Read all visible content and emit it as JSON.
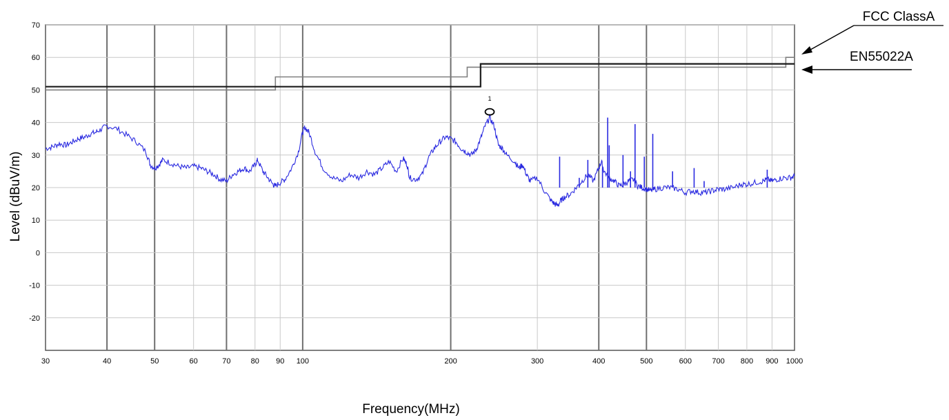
{
  "chart_data": {
    "type": "line",
    "xlabel": "Frequency(MHz)",
    "ylabel": "Level (dBuV/m)",
    "x_scale": "log",
    "xlim": [
      30,
      1000
    ],
    "ylim": [
      -30,
      70
    ],
    "x_ticks": [
      30,
      40,
      50,
      60,
      70,
      80,
      90,
      100,
      200,
      300,
      400,
      500,
      600,
      700,
      800,
      900,
      1000
    ],
    "x_tick_labels": [
      "30",
      "40",
      "50",
      "60",
      "70",
      "80",
      "90",
      "100",
      "200",
      "300",
      "400",
      "500",
      "600",
      "700",
      "800",
      "900",
      "1000"
    ],
    "y_ticks": [
      -20,
      -10,
      0,
      10,
      20,
      30,
      40,
      50,
      60,
      70
    ],
    "y_tick_labels": [
      "-20",
      "-10",
      "0",
      "10",
      "20",
      "30",
      "40",
      "50",
      "60",
      "70"
    ],
    "grid": true,
    "limit_lines": [
      {
        "name": "FCC ClassA",
        "color": "#7f7f7f",
        "points": [
          [
            30,
            50
          ],
          [
            88,
            50
          ],
          [
            88,
            54
          ],
          [
            216,
            54
          ],
          [
            216,
            57
          ],
          [
            960,
            57
          ],
          [
            960,
            60
          ],
          [
            1000,
            60
          ]
        ]
      },
      {
        "name": "EN55022A",
        "color": "#1a1a1a",
        "points": [
          [
            30,
            51
          ],
          [
            230,
            51
          ],
          [
            230,
            58
          ],
          [
            1000,
            58
          ]
        ]
      }
    ],
    "series": [
      {
        "color": "#2a2ae0",
        "points": [
          [
            30,
            32
          ],
          [
            31,
            32.5
          ],
          [
            32,
            33.5
          ],
          [
            33,
            33
          ],
          [
            34,
            34
          ],
          [
            35,
            35
          ],
          [
            36,
            35.5
          ],
          [
            37,
            36.5
          ],
          [
            38,
            37
          ],
          [
            39,
            38
          ],
          [
            40,
            39
          ],
          [
            42,
            38
          ],
          [
            44,
            36
          ],
          [
            46,
            34
          ],
          [
            48,
            31
          ],
          [
            49,
            27
          ],
          [
            50,
            26
          ],
          [
            51,
            27
          ],
          [
            52,
            28.5
          ],
          [
            54,
            27.5
          ],
          [
            56,
            26.5
          ],
          [
            58,
            26
          ],
          [
            60,
            26.5
          ],
          [
            62,
            26
          ],
          [
            64,
            25
          ],
          [
            66,
            24
          ],
          [
            68,
            22.5
          ],
          [
            70,
            22
          ],
          [
            72,
            24
          ],
          [
            74,
            25
          ],
          [
            76,
            26
          ],
          [
            78,
            25
          ],
          [
            80,
            27
          ],
          [
            81,
            28.5
          ],
          [
            83,
            25
          ],
          [
            85,
            23
          ],
          [
            87,
            21
          ],
          [
            88,
            20.5
          ],
          [
            90,
            21.5
          ],
          [
            92,
            22.5
          ],
          [
            95,
            26
          ],
          [
            98,
            31
          ],
          [
            100,
            37
          ],
          [
            101,
            38.5
          ],
          [
            103,
            37
          ],
          [
            106,
            31
          ],
          [
            110,
            26
          ],
          [
            115,
            23
          ],
          [
            120,
            22
          ],
          [
            125,
            24
          ],
          [
            130,
            23
          ],
          [
            135,
            25
          ],
          [
            140,
            24
          ],
          [
            145,
            26
          ],
          [
            150,
            28
          ],
          [
            155,
            25
          ],
          [
            160,
            29
          ],
          [
            163,
            27
          ],
          [
            165,
            23
          ],
          [
            170,
            22.5
          ],
          [
            175,
            24
          ],
          [
            180,
            29
          ],
          [
            185,
            32
          ],
          [
            190,
            34
          ],
          [
            195,
            35.5
          ],
          [
            200,
            35
          ],
          [
            205,
            34
          ],
          [
            210,
            32
          ],
          [
            215,
            31
          ],
          [
            220,
            30
          ],
          [
            225,
            31.5
          ],
          [
            230,
            35
          ],
          [
            235,
            39
          ],
          [
            240,
            41.5
          ],
          [
            245,
            39
          ],
          [
            250,
            33
          ],
          [
            255,
            32
          ],
          [
            260,
            30
          ],
          [
            270,
            28
          ],
          [
            275,
            26
          ],
          [
            280,
            27
          ],
          [
            285,
            24
          ],
          [
            290,
            22
          ],
          [
            300,
            23
          ],
          [
            310,
            19
          ],
          [
            320,
            16
          ],
          [
            325,
            15
          ],
          [
            330,
            14.5
          ],
          [
            335,
            16
          ],
          [
            340,
            17
          ],
          [
            350,
            18
          ],
          [
            360,
            20
          ],
          [
            370,
            22
          ],
          [
            380,
            24
          ],
          [
            390,
            22
          ],
          [
            400,
            26
          ],
          [
            405,
            28
          ],
          [
            410,
            25
          ],
          [
            420,
            23
          ],
          [
            430,
            22
          ],
          [
            440,
            20.5
          ],
          [
            450,
            21
          ],
          [
            460,
            22
          ],
          [
            470,
            22.5
          ],
          [
            480,
            20.5
          ],
          [
            490,
            20
          ],
          [
            500,
            19.5
          ],
          [
            510,
            19
          ],
          [
            520,
            19.5
          ],
          [
            540,
            20
          ],
          [
            560,
            20
          ],
          [
            580,
            19.5
          ],
          [
            600,
            18.5
          ],
          [
            620,
            19
          ],
          [
            640,
            18.5
          ],
          [
            660,
            18.5
          ],
          [
            680,
            19
          ],
          [
            700,
            19.5
          ],
          [
            720,
            19.5
          ],
          [
            750,
            20
          ],
          [
            780,
            21
          ],
          [
            800,
            21
          ],
          [
            830,
            21.5
          ],
          [
            860,
            22
          ],
          [
            880,
            22.5
          ],
          [
            900,
            22
          ],
          [
            920,
            22.5
          ],
          [
            950,
            23
          ],
          [
            980,
            23
          ],
          [
            1000,
            23.5
          ]
        ]
      },
      {
        "color": "#2a2ae0",
        "type": "spikes",
        "points": [
          [
            333,
            29.5
          ],
          [
            365,
            23
          ],
          [
            380,
            28.5
          ],
          [
            407,
            26
          ],
          [
            417,
            41.5
          ],
          [
            420,
            33
          ],
          [
            448,
            30
          ],
          [
            464,
            25
          ],
          [
            474,
            39.5
          ],
          [
            495,
            29.5
          ],
          [
            515,
            36.5
          ],
          [
            565,
            25
          ],
          [
            625,
            26
          ],
          [
            655,
            22
          ],
          [
            880,
            25.5
          ]
        ]
      }
    ],
    "markers": [
      {
        "label": "1",
        "x": 240,
        "y": 42
      }
    ]
  }
}
